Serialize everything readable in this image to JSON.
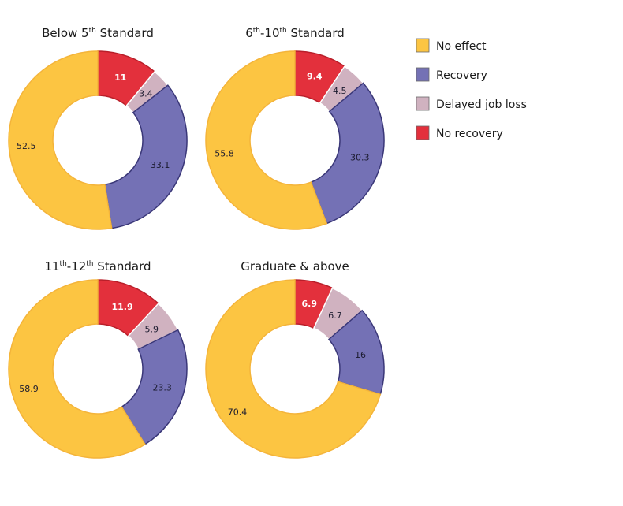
{
  "chart_data": {
    "type": "pie",
    "legend": {
      "placement": "top-right",
      "entries": [
        {
          "key": "no_effect",
          "label": "No effect",
          "color": "#fcc542"
        },
        {
          "key": "recovery",
          "label": "Recovery",
          "color": "#7471b5"
        },
        {
          "key": "delayed",
          "label": "Delayed job loss",
          "color": "#d0b2c0"
        },
        {
          "key": "no_recovery",
          "label": "No recovery",
          "color": "#e3303c"
        }
      ]
    },
    "charts": [
      {
        "title": {
          "pre": "Below 5",
          "sup": "th",
          "post": " Standard"
        },
        "slices": [
          {
            "key": "no_recovery",
            "value": 11,
            "label": "11"
          },
          {
            "key": "delayed",
            "value": 3.4,
            "label": "3.4"
          },
          {
            "key": "recovery",
            "value": 33.1,
            "label": "33.1"
          },
          {
            "key": "no_effect",
            "value": 52.5,
            "label": "52.5"
          }
        ]
      },
      {
        "title": {
          "pre": "6",
          "sup": "th",
          "mid": "-10",
          "sup2": "th",
          "post": " Standard"
        },
        "slices": [
          {
            "key": "no_recovery",
            "value": 9.4,
            "label": "9.4"
          },
          {
            "key": "delayed",
            "value": 4.5,
            "label": "4.5"
          },
          {
            "key": "recovery",
            "value": 30.3,
            "label": "30.3"
          },
          {
            "key": "no_effect",
            "value": 55.8,
            "label": "55.8"
          }
        ]
      },
      {
        "title": {
          "pre": "11",
          "sup": "th",
          "mid": "-12",
          "sup2": "th",
          "post": " Standard"
        },
        "slices": [
          {
            "key": "no_recovery",
            "value": 11.9,
            "label": "11.9"
          },
          {
            "key": "delayed",
            "value": 5.9,
            "label": "5.9"
          },
          {
            "key": "recovery",
            "value": 23.3,
            "label": "23.3"
          },
          {
            "key": "no_effect",
            "value": 58.9,
            "label": "58.9"
          }
        ]
      },
      {
        "title": {
          "pre": "Graduate & above"
        },
        "slices": [
          {
            "key": "no_recovery",
            "value": 6.9,
            "label": "6.9"
          },
          {
            "key": "delayed",
            "value": 6.7,
            "label": "6.7"
          },
          {
            "key": "recovery",
            "value": 16,
            "label": "16"
          },
          {
            "key": "no_effect",
            "value": 70.4,
            "label": "70.4"
          }
        ]
      }
    ]
  }
}
